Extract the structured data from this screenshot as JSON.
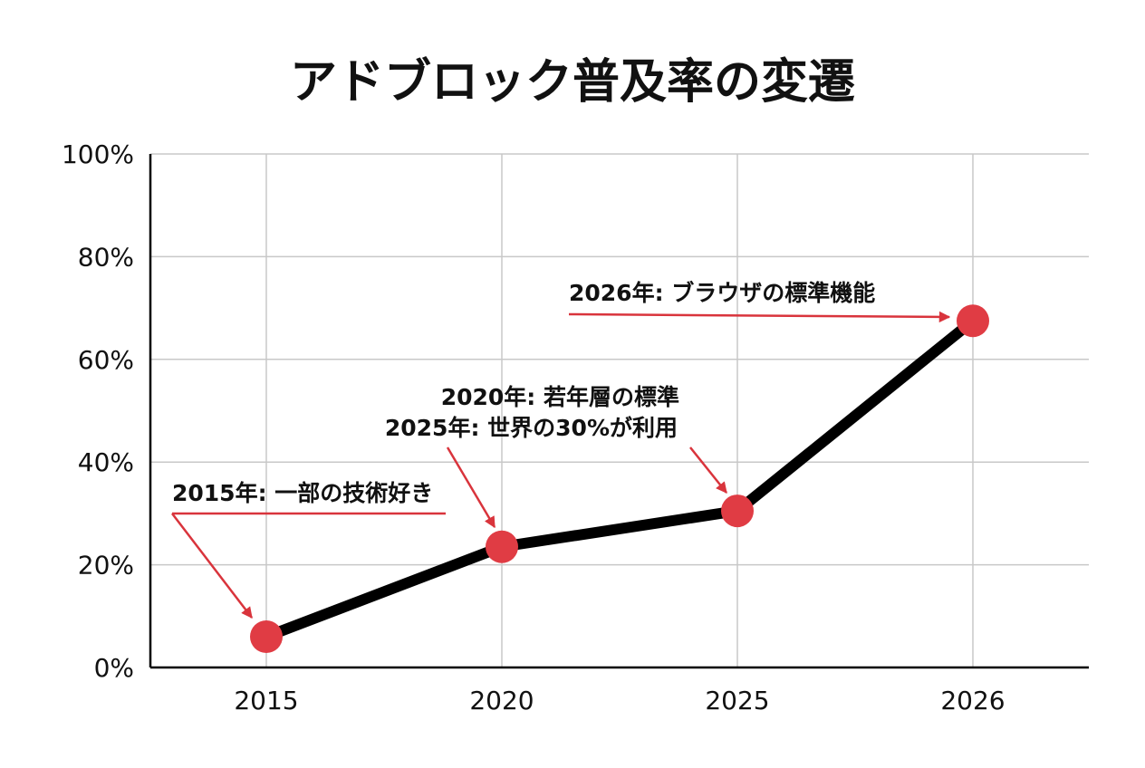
{
  "chart_data": {
    "type": "line",
    "title": "アドブロック普及率の変遷",
    "xlabel": "",
    "ylabel": "",
    "categories": [
      "2015",
      "2020",
      "2025",
      "2026"
    ],
    "series": [
      {
        "values": [
          6,
          23.5,
          30.5,
          67.5
        ]
      }
    ],
    "ylim": [
      0,
      100
    ],
    "yticks": [
      0,
      20,
      40,
      60,
      80,
      100
    ],
    "ytick_labels": [
      "0%",
      "20%",
      "40%",
      "60%",
      "80%",
      "100%"
    ],
    "grid": true,
    "annotations": [
      {
        "text": "2015年: 一部の技術好き",
        "target": "2015"
      },
      {
        "text": "2020年: 若年層の標準",
        "target": "2020"
      },
      {
        "text": "2025年: 世界の30%が利用",
        "target": "2025"
      },
      {
        "text": "2026年: ブラウザの標準機能",
        "target": "2026"
      }
    ],
    "colors": {
      "line": "#000000",
      "marker": "#e03c44",
      "annotation_arrow": "#d9343c",
      "grid": "#c8c8c8",
      "axis": "#000000"
    }
  }
}
